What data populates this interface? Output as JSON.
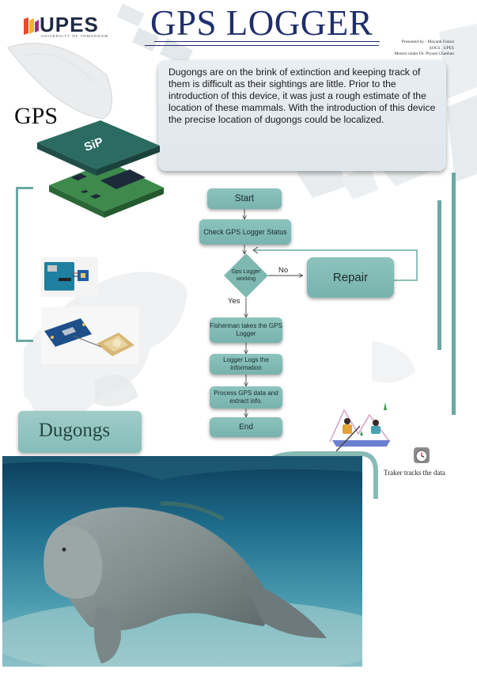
{
  "logo": {
    "name": "UPES",
    "subtitle": "UNIVERSITY OF TOMORROW"
  },
  "title": "GPS LOGGER",
  "credits": {
    "line1": "Presented by - Mayank Fulara",
    "line2": "SOCS , UPES",
    "line3": "Mentor under Dr. Piyush Chauhan"
  },
  "intro_text": "Dugongs are on the brink of extinction and keeping track of them is difficult as their sightings are little. Prior to the introduction of this device, it was just a rough estimate of the location of these mammals. With the introduction of this device the precise location of dugongs could be localized.",
  "gps_label": "GPS",
  "chip_label": "SiP",
  "flowchart": {
    "start": "Start",
    "check": "Check GPS Logger Status",
    "decision": "Gps Logger working",
    "no_label": "No",
    "yes_label": "Yes",
    "repair": "Repair",
    "fisherman": "Fisherman takes the GPS Logger",
    "logs": "Logger Logs the information",
    "process": "Process GPS data and extract info.",
    "end": "End"
  },
  "dugongs_label": "Dugongs",
  "tracker_caption": "Traker tracks the data",
  "icons": [
    "satellite-image",
    "sip-chip-icon",
    "arduino-board-image",
    "gps-module-image",
    "fisherman-illustration",
    "clock-icon",
    "dugong-photo"
  ],
  "colors": {
    "teal": "#79b3ad",
    "title_blue": "#1f2f6b",
    "bracket": "#6aa9a4"
  }
}
